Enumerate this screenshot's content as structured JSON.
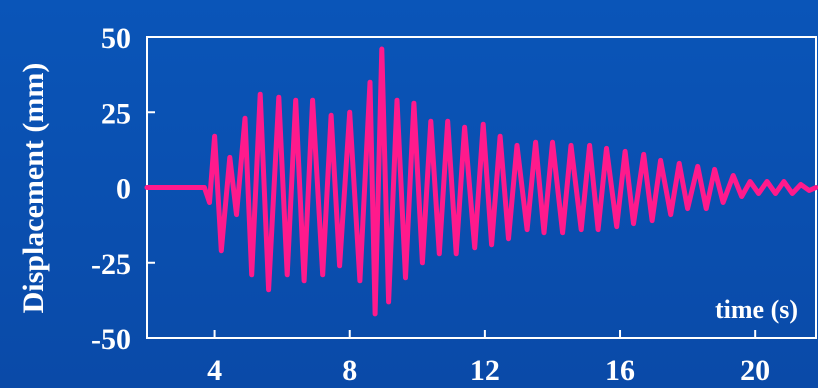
{
  "chart_data": {
    "type": "line",
    "title": "",
    "xlabel": "time (s)",
    "ylabel": "Displacement (mm)",
    "xlim": [
      2.0,
      21.8
    ],
    "ylim": [
      -50,
      50
    ],
    "xticks": [
      4,
      8,
      12,
      16,
      20
    ],
    "yticks": [
      50,
      25,
      0,
      -25,
      -50
    ],
    "xtick_labels": [
      "4",
      "8",
      "12",
      "16",
      "20"
    ],
    "ytick_labels": [
      "50",
      "25",
      "0",
      "-25",
      "-50"
    ],
    "grid": false,
    "colors": {
      "background": "#0a4fb0",
      "axes": "#ffffff",
      "series": "#ff1a8c",
      "text": "#ffffff"
    },
    "series": [
      {
        "name": "",
        "points": [
          [
            2.0,
            0
          ],
          [
            3.5,
            0
          ],
          [
            3.7,
            0
          ],
          [
            3.85,
            -5
          ],
          [
            4.0,
            17
          ],
          [
            4.2,
            -21
          ],
          [
            4.45,
            10
          ],
          [
            4.65,
            -9
          ],
          [
            4.9,
            23
          ],
          [
            5.1,
            -29
          ],
          [
            5.35,
            31
          ],
          [
            5.6,
            -34
          ],
          [
            5.9,
            30
          ],
          [
            6.15,
            -29
          ],
          [
            6.4,
            29
          ],
          [
            6.65,
            -31
          ],
          [
            6.9,
            29
          ],
          [
            7.2,
            -29
          ],
          [
            7.45,
            24
          ],
          [
            7.7,
            -26
          ],
          [
            8.0,
            25
          ],
          [
            8.3,
            -31
          ],
          [
            8.6,
            35
          ],
          [
            8.75,
            -42
          ],
          [
            8.95,
            46
          ],
          [
            9.15,
            -38
          ],
          [
            9.4,
            29
          ],
          [
            9.65,
            -30
          ],
          [
            9.9,
            28
          ],
          [
            10.15,
            -25
          ],
          [
            10.4,
            22
          ],
          [
            10.65,
            -22
          ],
          [
            10.9,
            22
          ],
          [
            11.15,
            -22
          ],
          [
            11.4,
            20
          ],
          [
            11.7,
            -20
          ],
          [
            11.95,
            21
          ],
          [
            12.2,
            -19
          ],
          [
            12.45,
            17
          ],
          [
            12.7,
            -17
          ],
          [
            12.95,
            14
          ],
          [
            13.25,
            -14
          ],
          [
            13.5,
            15
          ],
          [
            13.75,
            -15
          ],
          [
            14.0,
            15
          ],
          [
            14.3,
            -15
          ],
          [
            14.55,
            14
          ],
          [
            14.85,
            -14
          ],
          [
            15.1,
            14
          ],
          [
            15.35,
            -14
          ],
          [
            15.6,
            13
          ],
          [
            15.9,
            -13
          ],
          [
            16.15,
            12
          ],
          [
            16.4,
            -12
          ],
          [
            16.7,
            11
          ],
          [
            16.95,
            -11
          ],
          [
            17.2,
            9
          ],
          [
            17.5,
            -9
          ],
          [
            17.75,
            8
          ],
          [
            18.0,
            -7
          ],
          [
            18.3,
            7
          ],
          [
            18.55,
            -7
          ],
          [
            18.8,
            6
          ],
          [
            19.05,
            -5
          ],
          [
            19.35,
            4
          ],
          [
            19.6,
            -3
          ],
          [
            19.85,
            2
          ],
          [
            20.1,
            -2
          ],
          [
            20.35,
            2
          ],
          [
            20.6,
            -2
          ],
          [
            20.85,
            2
          ],
          [
            21.1,
            -2
          ],
          [
            21.35,
            1
          ],
          [
            21.6,
            -1
          ],
          [
            21.8,
            0
          ]
        ]
      }
    ]
  }
}
